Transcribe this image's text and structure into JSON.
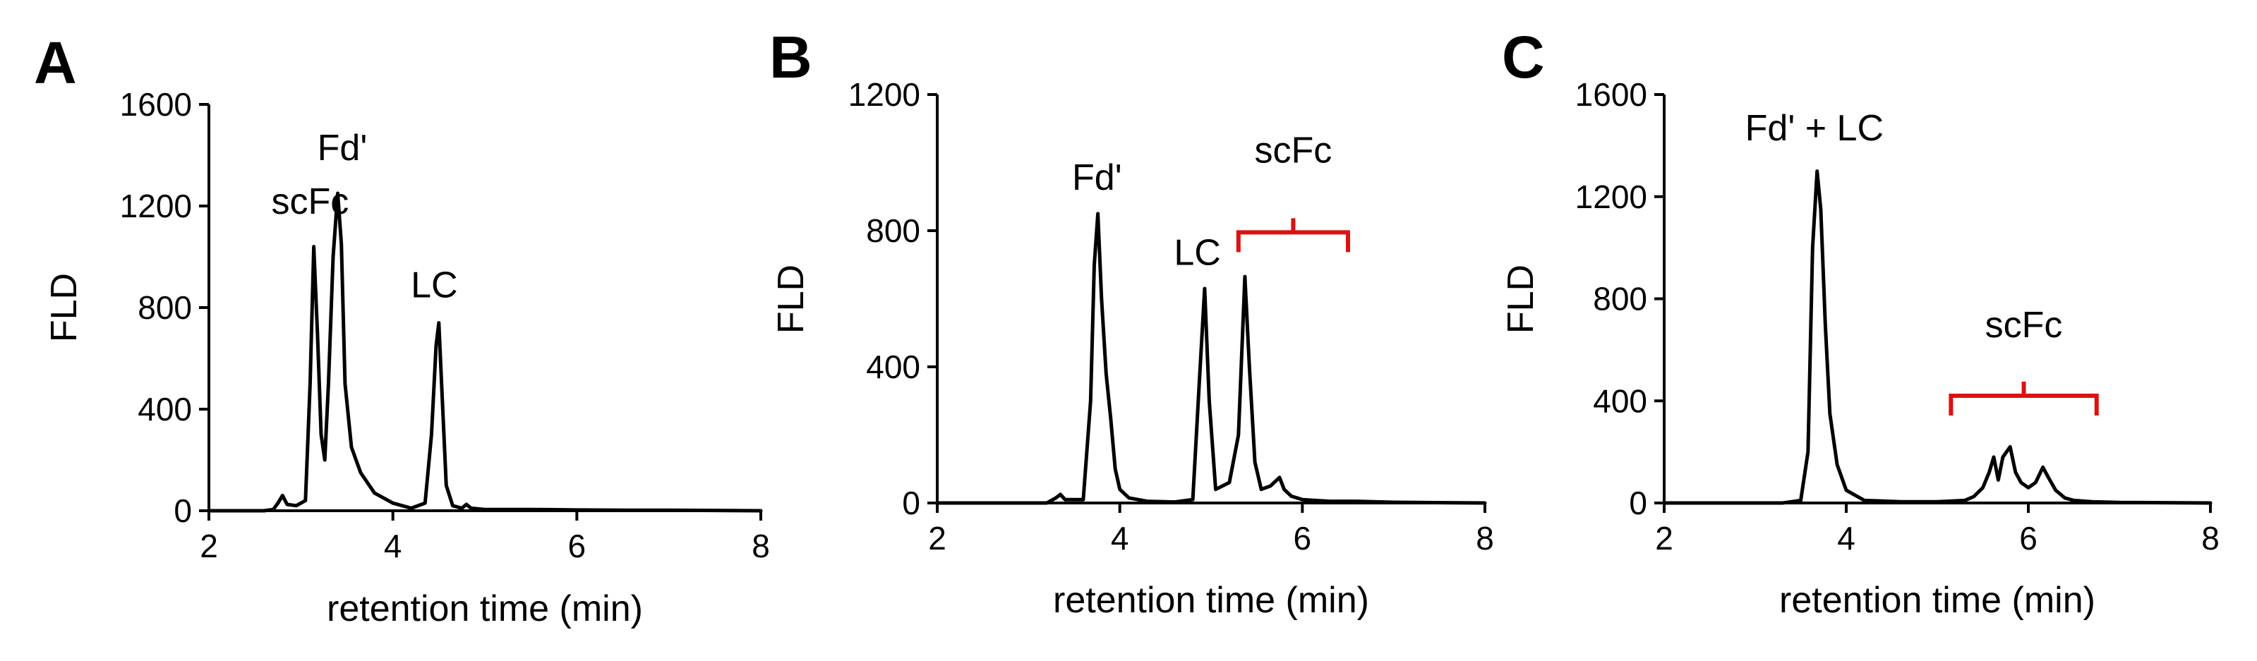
{
  "chart_data": [
    {
      "panel_label": "A",
      "type": "line",
      "xlabel": "retention time (min)",
      "ylabel": "FLD",
      "xlim": [
        2,
        8
      ],
      "ylim": [
        0,
        1600
      ],
      "xticks": [
        "2",
        "4",
        "6",
        "8"
      ],
      "yticks": [
        "0",
        "400",
        "800",
        "1200",
        "1600"
      ],
      "series": [
        {
          "color": "#000000",
          "x": [
            2.0,
            2.6,
            2.7,
            2.75,
            2.8,
            2.85,
            2.95,
            3.05,
            3.1,
            3.14,
            3.18,
            3.22,
            3.26,
            3.3,
            3.35,
            3.4,
            3.44,
            3.48,
            3.55,
            3.65,
            3.8,
            4.0,
            4.2,
            4.35,
            4.42,
            4.47,
            4.5,
            4.53,
            4.58,
            4.65,
            4.75,
            4.8,
            4.85,
            5.0,
            5.5,
            6.0,
            6.5,
            7.0,
            8.0
          ],
          "y": [
            0,
            0,
            5,
            30,
            60,
            25,
            20,
            40,
            500,
            1040,
            700,
            300,
            200,
            500,
            1000,
            1250,
            1050,
            500,
            250,
            150,
            70,
            30,
            10,
            30,
            300,
            650,
            740,
            500,
            100,
            20,
            10,
            25,
            10,
            5,
            5,
            3,
            2,
            2,
            0
          ]
        }
      ],
      "annotations": [
        {
          "text": "scFc",
          "x": 3.1,
          "y": 1170
        },
        {
          "text": "Fd'",
          "x": 3.45,
          "y": 1380
        },
        {
          "text": "LC",
          "x": 4.45,
          "y": 840
        }
      ]
    },
    {
      "panel_label": "B",
      "type": "line",
      "xlabel": "retention time (min)",
      "ylabel": "FLD",
      "xlim": [
        2,
        8
      ],
      "ylim": [
        0,
        1200
      ],
      "xticks": [
        "2",
        "4",
        "6",
        "8"
      ],
      "yticks": [
        "0",
        "400",
        "800",
        "1200"
      ],
      "series": [
        {
          "color": "#000000",
          "x": [
            2.0,
            3.2,
            3.3,
            3.35,
            3.4,
            3.6,
            3.68,
            3.72,
            3.76,
            3.8,
            3.85,
            3.9,
            3.95,
            4.0,
            4.1,
            4.3,
            4.6,
            4.8,
            4.87,
            4.93,
            4.98,
            5.05,
            5.2,
            5.3,
            5.37,
            5.42,
            5.48,
            5.55,
            5.65,
            5.75,
            5.8,
            5.88,
            6.0,
            6.3,
            6.6,
            7.0,
            8.0
          ],
          "y": [
            0,
            0,
            15,
            25,
            10,
            10,
            300,
            700,
            850,
            600,
            380,
            250,
            100,
            40,
            15,
            5,
            3,
            10,
            350,
            630,
            300,
            40,
            60,
            200,
            665,
            400,
            120,
            40,
            50,
            75,
            40,
            20,
            10,
            5,
            5,
            2,
            0
          ]
        }
      ],
      "annotations": [
        {
          "text": "Fd'",
          "x": 3.75,
          "y": 920
        },
        {
          "text": "LC",
          "x": 4.85,
          "y": 700
        },
        {
          "text": "scFc",
          "x": 5.9,
          "y": 1000
        }
      ],
      "brackets": [
        {
          "x_start": 5.3,
          "x_end": 6.5,
          "y": 795,
          "color": "#dd1111"
        }
      ]
    },
    {
      "panel_label": "C",
      "type": "line",
      "xlabel": "retention time (min)",
      "ylabel": "FLD",
      "xlim": [
        2,
        8
      ],
      "ylim": [
        0,
        1600
      ],
      "xticks": [
        "2",
        "4",
        "6",
        "8"
      ],
      "yticks": [
        "0",
        "400",
        "800",
        "1200",
        "1600"
      ],
      "series": [
        {
          "color": "#000000",
          "x": [
            2.0,
            3.3,
            3.5,
            3.58,
            3.63,
            3.68,
            3.72,
            3.77,
            3.82,
            3.9,
            4.0,
            4.2,
            4.6,
            5.0,
            5.3,
            5.4,
            5.5,
            5.57,
            5.62,
            5.67,
            5.72,
            5.8,
            5.86,
            5.92,
            6.0,
            6.08,
            6.16,
            6.22,
            6.3,
            6.4,
            6.5,
            6.7,
            7.0,
            8.0
          ],
          "y": [
            0,
            0,
            10,
            200,
            1000,
            1300,
            1150,
            700,
            350,
            150,
            50,
            10,
            5,
            5,
            10,
            25,
            60,
            120,
            180,
            90,
            180,
            220,
            120,
            80,
            60,
            80,
            140,
            100,
            50,
            20,
            10,
            5,
            2,
            0
          ]
        }
      ],
      "annotations": [
        {
          "text": "Fd' + LC",
          "x": 3.65,
          "y": 1420
        },
        {
          "text": "scFc",
          "x": 5.95,
          "y": 650
        }
      ],
      "brackets": [
        {
          "x_start": 5.15,
          "x_end": 6.75,
          "y": 420,
          "color": "#dd1111"
        }
      ]
    }
  ]
}
